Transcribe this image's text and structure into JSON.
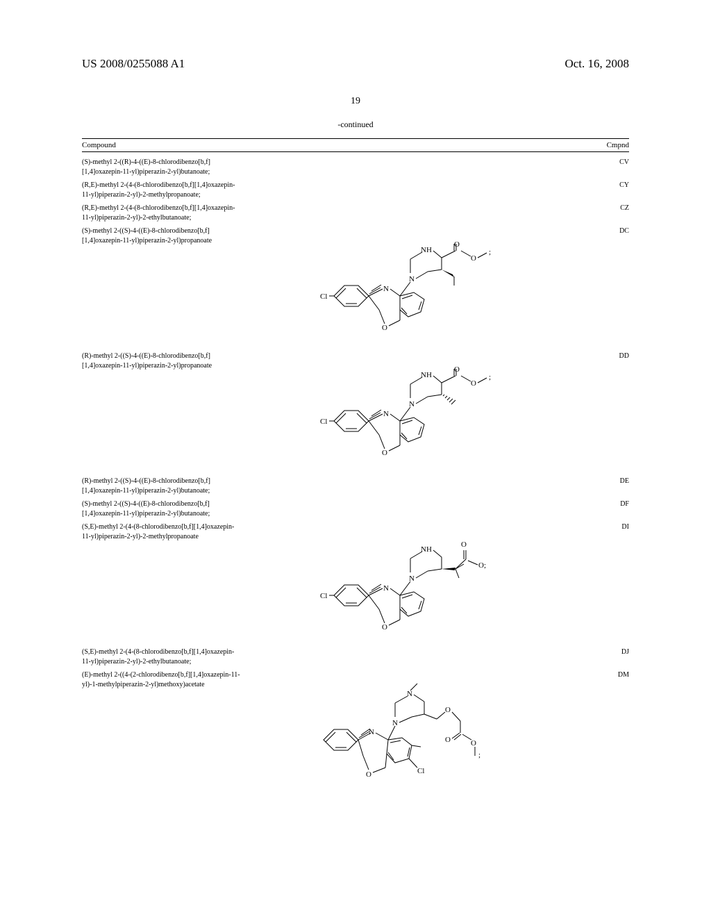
{
  "header": {
    "doc_number": "US 2008/0255088 A1",
    "date": "Oct. 16, 2008"
  },
  "page_number": "19",
  "continued_label": "-continued",
  "table": {
    "header_left": "Compound",
    "header_right": "Cmpnd"
  },
  "entries": [
    {
      "name": "(S)-methyl 2-((R)-4-((E)-8-chlorodibenzo[b,f][1,4]oxazepin-11-yl)piperazin-2-yl)butanoate;",
      "code": "CV",
      "has_structure": false
    },
    {
      "name": "(R,E)-methyl 2-(4-(8-chlorodibenzo[b,f][1,4]oxazepin-11-yl)piperazin-2-yl)-2-methylpropanoate;",
      "code": "CY",
      "has_structure": false
    },
    {
      "name": "(R,E)-methyl 2-(4-(8-chlorodibenzo[b,f][1,4]oxazepin-11-yl)piperazin-2-yl)-2-ethylbutanoate;",
      "code": "CZ",
      "has_structure": false
    },
    {
      "name": "(S)-methyl 2-((S)-4-((E)-8-chlorodibenzo[b,f][1,4]oxazepin-11-yl)piperazin-2-yl)propanoate",
      "code": "DC",
      "has_structure": true,
      "structure_type": "A"
    },
    {
      "name": "(R)-methyl 2-((S)-4-((E)-8-chlorodibenzo[b,f][1,4]oxazepin-11-yl)piperazin-2-yl)propanoate",
      "code": "DD",
      "has_structure": true,
      "structure_type": "B"
    },
    {
      "name": "(R)-methyl 2-((S)-4-((E)-8-chlorodibenzo[b,f][1,4]oxazepin-11-yl)piperazin-2-yl)butanoate;",
      "code": "DE",
      "has_structure": false
    },
    {
      "name": "(S)-methyl 2-((S)-4-((E)-8-chlorodibenzo[b,f][1,4]oxazepin-11-yl)piperazin-2-yl)butanoate;",
      "code": "DF",
      "has_structure": false
    },
    {
      "name": "(S,E)-methyl 2-(4-(8-chlorodibenzo[b,f][1,4]oxazepin-11-yl)piperazin-2-yl)-2-methylpropanoate",
      "code": "DI",
      "has_structure": true,
      "structure_type": "C"
    },
    {
      "name": "(S,E)-methyl 2-(4-(8-chlorodibenzo[b,f][1,4]oxazepin-11-yl)piperazin-2-yl)-2-ethylbutanoate;",
      "code": "DJ",
      "has_structure": false
    },
    {
      "name": "(E)-methyl 2-((4-(2-chlorodibenzo[b,f][1,4]oxazepin-11-yl)-1-methylpiperazin-2-yl)methoxy)acetate",
      "code": "DM",
      "has_structure": true,
      "structure_type": "D"
    }
  ],
  "structure_style": {
    "stroke": "#000000",
    "stroke_width": 1,
    "font_size": 10,
    "cl_label": "Cl",
    "nh_label": "NH",
    "n_label": "N",
    "o_label": "O"
  }
}
